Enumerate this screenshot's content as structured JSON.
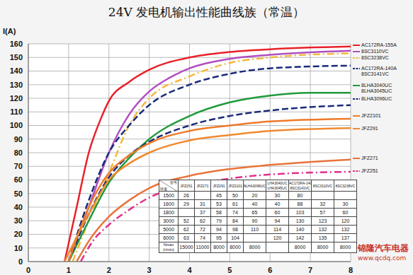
{
  "chart_data": {
    "type": "line",
    "title": "24V 发电机输出性能曲线族（常温）",
    "y_label": "I(A)",
    "xlim": [
      0,
      8
    ],
    "xticks": [
      0,
      1,
      2,
      3,
      4,
      5,
      6,
      7,
      8
    ],
    "ylim": [
      0,
      160
    ],
    "yticks": [
      0,
      10,
      20,
      30,
      40,
      50,
      60,
      70,
      80,
      90,
      100,
      110,
      120,
      130,
      140,
      150,
      160
    ],
    "grid": true,
    "legend": "right",
    "series": [
      {
        "name": "AC172RA-155A",
        "color": "#e8212a",
        "line_style": "solid",
        "x": [
          0.9,
          1.2,
          1.5,
          1.8,
          2,
          2.5,
          3,
          4,
          5,
          6,
          8
        ],
        "values": [
          0,
          40,
          80,
          105,
          118,
          132,
          141,
          150,
          154,
          156,
          158
        ]
      },
      {
        "name": "8SC3110VC",
        "color": "#b04fc0",
        "line_style": "solid",
        "x": [
          1.0,
          1.5,
          2,
          2.5,
          3,
          3.5,
          4,
          5,
          6,
          8
        ],
        "values": [
          0,
          40,
          80,
          108,
          125,
          135,
          142,
          149,
          152,
          155
        ]
      },
      {
        "name": "8SC3238VC",
        "color": "#f5b83a",
        "line_style": "dashdot",
        "x": [
          1.1,
          1.5,
          2,
          2.5,
          3,
          4,
          5,
          6,
          8
        ],
        "values": [
          0,
          30,
          65,
          100,
          120,
          136,
          146,
          150,
          153
        ]
      },
      {
        "name": "AC172RA-140A 8SC3141VC",
        "color": "#1a2a7a",
        "line_style": "dashed",
        "x": [
          1.0,
          1.5,
          2,
          2.5,
          3,
          4,
          5,
          6,
          8
        ],
        "values": [
          0,
          45,
          80,
          100,
          115,
          130,
          138,
          142,
          144
        ]
      },
      {
        "name": "8LHA3040UC 8LHA3045UC",
        "color": "#1f9a3a",
        "line_style": "solid",
        "x": [
          1.0,
          1.5,
          2,
          2.5,
          3,
          4,
          5,
          6,
          7,
          8
        ],
        "values": [
          0,
          30,
          58,
          76,
          90,
          107,
          117,
          122,
          124,
          124
        ]
      },
      {
        "name": "8LHA3096UC",
        "color": "#1a2a7a",
        "line_style": "dashed",
        "x": [
          1.0,
          1.5,
          2,
          2.5,
          3,
          4,
          5,
          6,
          8
        ],
        "values": [
          0,
          35,
          62,
          78,
          88,
          100,
          107,
          111,
          115
        ]
      },
      {
        "name": "JFZ2101",
        "color": "#ee7a2a",
        "line_style": "solid",
        "x": [
          1.0,
          1.5,
          2,
          2.5,
          3,
          4,
          5,
          6,
          8
        ],
        "values": [
          0,
          40,
          65,
          78,
          87,
          96,
          100,
          103,
          105
        ]
      },
      {
        "name": "JFZ291",
        "color": "#f08a30",
        "line_style": "solid",
        "x": [
          0.9,
          1.5,
          2,
          2.5,
          3,
          4,
          5,
          6,
          8
        ],
        "values": [
          0,
          35,
          60,
          72,
          80,
          89,
          93,
          96,
          98
        ]
      },
      {
        "name": "JFZ271",
        "color": "#e8743a",
        "line_style": "solid",
        "x": [
          1.2,
          1.5,
          2,
          2.5,
          3,
          4,
          5,
          6,
          8
        ],
        "values": [
          0,
          15,
          33,
          45,
          54,
          63,
          68,
          71,
          75
        ]
      },
      {
        "name": "JFZ251",
        "color": "#e0308a",
        "line_style": "dashdot",
        "x": [
          1.3,
          1.6,
          2,
          2.5,
          3,
          4,
          5,
          6,
          8
        ],
        "values": [
          0,
          15,
          27,
          38,
          47,
          56,
          61,
          64,
          66
        ]
      }
    ]
  },
  "table": {
    "corner": [
      "型号",
      "转速"
    ],
    "columns": [
      "JFZ251",
      "JFZ271",
      "JFZ291",
      "JFZ2101",
      "8LHA3096UC",
      [
        "LHA3040UC",
        "LHA3045UC"
      ],
      [
        "AC172RA-140",
        "8SC3141VC"
      ],
      "8SC3110VC",
      "8SC3238VC"
    ],
    "rows": [
      [
        1500,
        26,
        null,
        45,
        50,
        20,
        30,
        80,
        null,
        null
      ],
      [
        1600,
        29,
        31,
        53,
        61,
        40,
        40,
        88,
        32,
        30
      ],
      [
        1800,
        null,
        37,
        58,
        74,
        65,
        60,
        103,
        57,
        60
      ],
      [
        3000,
        52,
        62,
        79,
        84,
        90,
        94,
        130,
        123,
        120
      ],
      [
        5000,
        62,
        72,
        94,
        98,
        110,
        114,
        140,
        132,
        132
      ],
      [
        6000,
        63,
        74,
        95,
        104,
        null,
        120,
        142,
        135,
        137
      ],
      [
        [
          "Nmax",
          "(r/min)"
        ],
        15000,
        11000,
        8000,
        8000,
        8000,
        null,
        8000,
        8000,
        8000
      ]
    ]
  },
  "watermark": [
    "锦隆汽车电器",
    "www.qcdq.com"
  ]
}
